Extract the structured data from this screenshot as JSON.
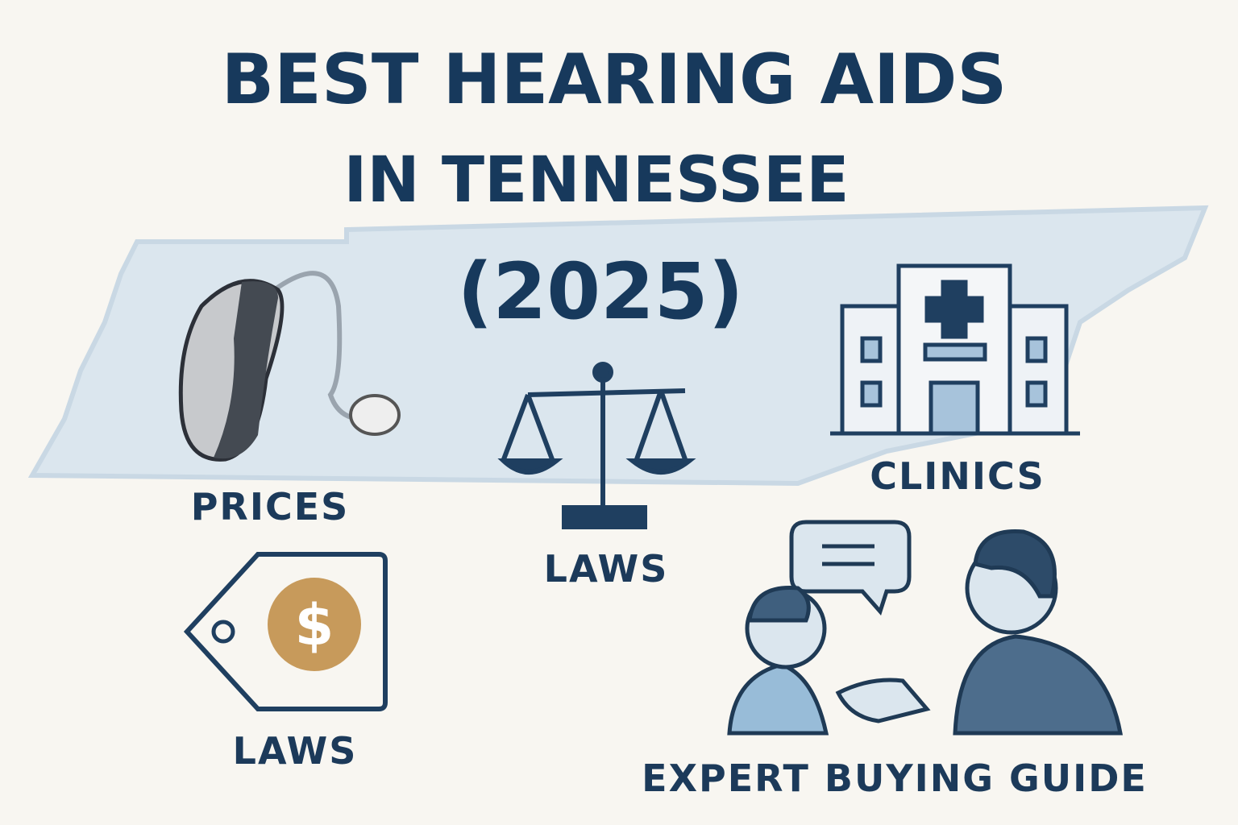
{
  "header": {
    "title_line1": "BEST HEARING AIDS",
    "title_line2": "IN TENNESSEE",
    "title_line3": "(2025)"
  },
  "labels": {
    "hearing_aid": "PRICES",
    "scale": "LAWS",
    "clinic": "CLINICS",
    "tag": "LAWS",
    "people": "EXPERT BUYING GUIDE"
  }
}
